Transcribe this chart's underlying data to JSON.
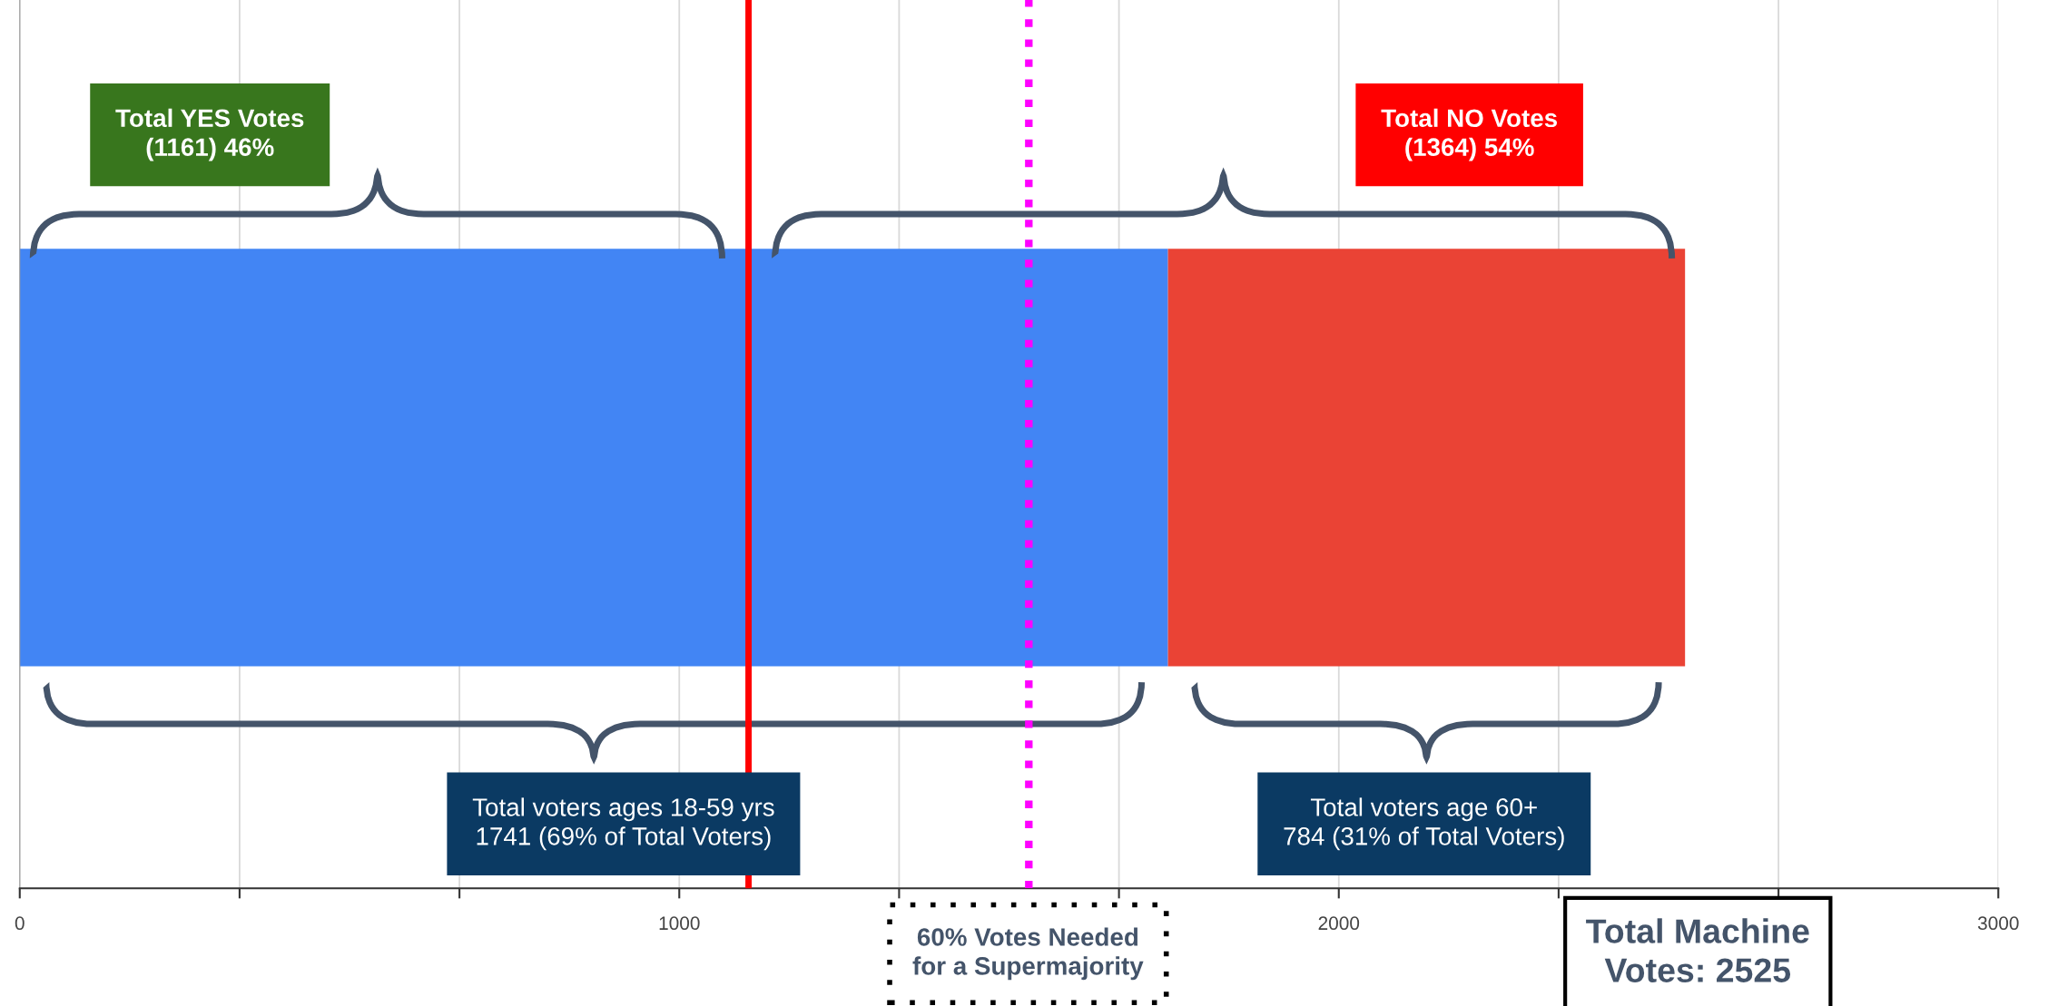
{
  "chart_data": {
    "type": "bar",
    "orientation": "horizontal",
    "stacked": true,
    "categories": [
      null
    ],
    "series": [
      {
        "color": "#4285f4",
        "values": [
          1741
        ]
      },
      {
        "color": "#ea4335",
        "values": [
          784
        ]
      }
    ],
    "xlim": [
      0,
      3000
    ],
    "xticks": [
      0,
      {
        "value": 333.3,
        "label": null
      },
      {
        "value": 666.7,
        "label": null
      },
      1000,
      {
        "value": 1333.3,
        "label": null
      },
      {
        "value": 1666.7,
        "label": null
      },
      2000,
      {
        "value": 2333.3,
        "label": null
      },
      {
        "value": 2666.7,
        "label": null
      },
      3000
    ],
    "grid": "x",
    "legend": false,
    "ref_lines": [
      {
        "axis": "x",
        "value": 1105,
        "color": "#ff0000",
        "line_style": "solid"
      },
      {
        "axis": "x",
        "value": 1530,
        "color": "#ff00ff",
        "line_style": "dotted",
        "label": "60% Votes Needed\nfor a Supermajority"
      }
    ],
    "annotations": [
      "Total YES Votes\n(1161) 46%",
      "Total NO Votes\n(1364) 54%",
      "Total voters ages 18-59 yrs\n1741 (69% of Total Voters)",
      "Total voters age 60+\n784 (31% of Total Voters)",
      "Total Machine\nVotes: 2525"
    ]
  }
}
